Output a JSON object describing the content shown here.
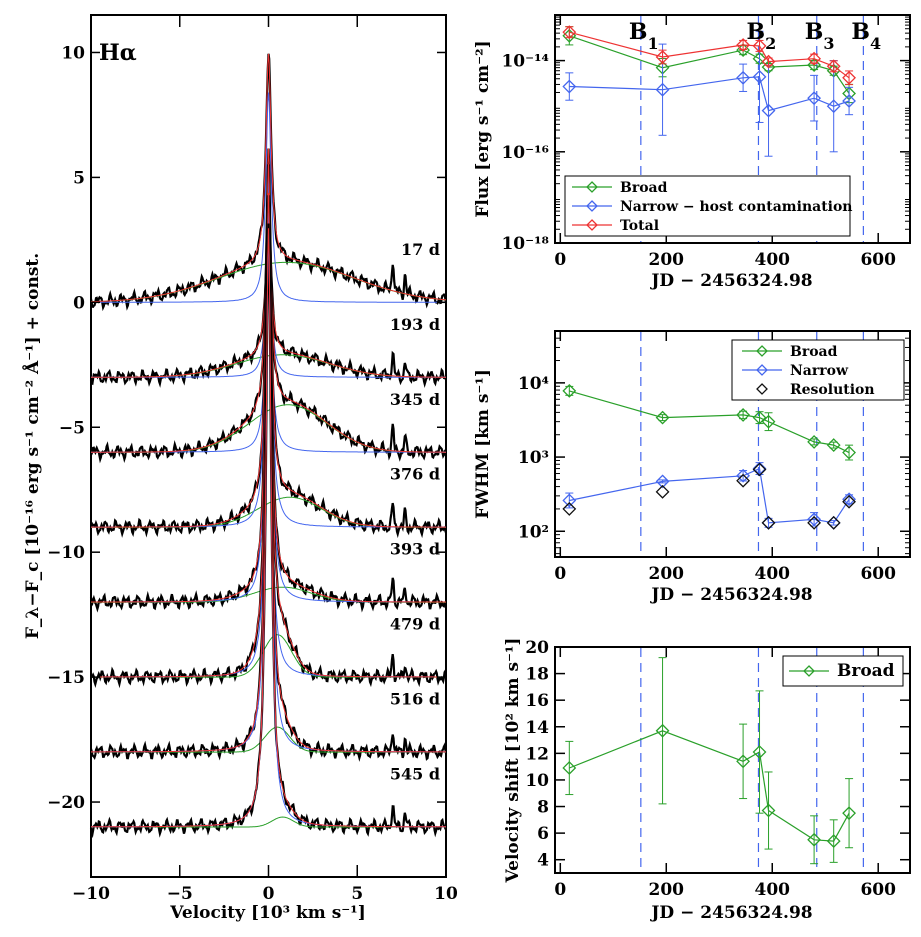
{
  "chart_data": [
    {
      "type": "line",
      "title": "Hα",
      "xlabel": "Velocity [10³ km s⁻¹]",
      "ylabel": "F_λ−F_c [10⁻¹⁶ erg s⁻¹ cm⁻² Å⁻¹] + const.",
      "xlim": [
        -10,
        10
      ],
      "ylim": [
        -23,
        11.5
      ],
      "xticks": [
        -10,
        -5,
        0,
        5,
        10
      ],
      "yticks": [
        10,
        5,
        0,
        -5,
        -10,
        -15,
        -20
      ],
      "xtick_labels": [
        "−10",
        "−5",
        "0",
        "5",
        "10"
      ],
      "ytick_labels": [
        "10",
        "5",
        "0",
        "−5",
        "−10",
        "−15",
        "−20"
      ],
      "epochs": [
        {
          "label": "17 d",
          "offset": 0,
          "peak": 9.7,
          "narrow_peak": 8.4,
          "broad_amp": 1.6,
          "broad_center": 1.0,
          "broad_width": 3.8
        },
        {
          "label": "193 d",
          "offset": -3,
          "peak": 3.4,
          "narrow_peak": 2.8,
          "broad_amp": 0.9,
          "broad_center": 0.8,
          "broad_width": 2.6
        },
        {
          "label": "345 d",
          "offset": -6,
          "peak": 4.1,
          "narrow_peak": 3.3,
          "broad_amp": 1.9,
          "broad_center": 1.1,
          "broad_width": 2.2
        },
        {
          "label": "376 d",
          "offset": -9,
          "peak": 6.0,
          "narrow_peak": 5.2,
          "broad_amp": 1.2,
          "broad_center": 1.2,
          "broad_width": 1.8
        },
        {
          "label": "393 d",
          "offset": -12,
          "peak": 5.6,
          "narrow_peak": 5.0,
          "broad_amp": 0.6,
          "broad_center": 0.8,
          "broad_width": 1.6
        },
        {
          "label": "479 d",
          "offset": -15,
          "peak": 3.6,
          "narrow_peak": 2.8,
          "broad_amp": 1.7,
          "broad_center": 0.5,
          "broad_width": 0.8
        },
        {
          "label": "516 d",
          "offset": -18,
          "peak": 4.2,
          "narrow_peak": 3.6,
          "broad_amp": 1.0,
          "broad_center": 0.5,
          "broad_width": 0.7
        },
        {
          "label": "545 d",
          "offset": -21,
          "peak": 3.3,
          "narrow_peak": 2.8,
          "broad_amp": 0.4,
          "broad_center": 0.8,
          "broad_width": 0.6
        }
      ]
    },
    {
      "type": "line",
      "xlabel": "JD − 2456324.98",
      "ylabel": "Flux [erg s⁻¹ cm⁻²]",
      "xlim": [
        -10,
        660
      ],
      "ylog": true,
      "ylim": [
        1e-18,
        1e-13
      ],
      "xticks": [
        0,
        200,
        400,
        600
      ],
      "yticks": [
        1e-18,
        1e-16,
        1e-14
      ],
      "ytick_labels": [
        "10⁻¹⁸",
        "10⁻¹⁶",
        "10⁻¹⁴"
      ],
      "vlines": [
        {
          "x": 152,
          "label": "B1"
        },
        {
          "x": 374,
          "label": "B2"
        },
        {
          "x": 484,
          "label": "B3"
        },
        {
          "x": 572,
          "label": "B4"
        }
      ],
      "x": [
        17,
        193,
        345,
        376,
        393,
        479,
        516,
        545
      ],
      "series": [
        {
          "name": "Broad",
          "color": "#2aa02a",
          "values": [
            3.5e-14,
            7e-15,
            1.7e-14,
            1.1e-14,
            7.2e-15,
            8e-15,
            6e-15,
            1.9e-15
          ],
          "errors": [
            0.2,
            0.2,
            0.1,
            0.1,
            0.08,
            0.1,
            0.1,
            0.2
          ]
        },
        {
          "name": "Narrow − host contamination",
          "color": "#4466ee",
          "values": [
            2.7e-15,
            2.3e-15,
            4.2e-15,
            4.4e-15,
            8e-16,
            1.5e-15,
            1e-15,
            1.3e-15
          ],
          "errors": [
            0.3,
            1.0,
            0.3,
            1.0,
            1.0,
            0.5,
            1.0,
            0.3
          ]
        },
        {
          "name": "Total",
          "color": "#ee3333",
          "values": [
            4.2e-14,
            1.2e-14,
            2.2e-14,
            2.1e-14,
            9.5e-15,
            1.1e-14,
            7.5e-15,
            4.2e-15
          ],
          "errors": [
            0.12,
            0.15,
            0.1,
            0.12,
            0.08,
            0.1,
            0.12,
            0.15
          ]
        }
      ],
      "legend": {
        "position": "bottom-left",
        "entries": [
          "Broad",
          "Narrow − host contamination",
          "Total"
        ]
      },
      "vline_labels": [
        {
          "main": "B",
          "sub": "1"
        },
        {
          "main": "B",
          "sub": "2"
        },
        {
          "main": "B",
          "sub": "3"
        },
        {
          "main": "B",
          "sub": "4"
        }
      ]
    },
    {
      "type": "line",
      "xlabel": "JD − 2456324.98",
      "ylabel": "FWHM [km s⁻¹]",
      "xlim": [
        -10,
        660
      ],
      "ylog": true,
      "ylim": [
        45,
        50000
      ],
      "xticks": [
        0,
        200,
        400,
        600
      ],
      "yticks": [
        100,
        1000,
        10000
      ],
      "ytick_labels": [
        "10²",
        "10³",
        "10⁴"
      ],
      "vlines": [
        152,
        374,
        484,
        572
      ],
      "x": [
        17,
        193,
        345,
        376,
        393,
        479,
        516,
        545
      ],
      "series": [
        {
          "name": "Broad",
          "color": "#2aa02a",
          "values": [
            7800,
            3400,
            3700,
            3400,
            3000,
            1600,
            1450,
            1150
          ],
          "errors": [
            0.06,
            0.04,
            0.05,
            0.08,
            0.12,
            0.04,
            0.04,
            0.1
          ]
        },
        {
          "name": "Narrow",
          "color": "#4466ee",
          "values": [
            260,
            470,
            560,
            700,
            130,
            145,
            130,
            270
          ],
          "errors": [
            0.1,
            0.02,
            0.07,
            0.08,
            0.06,
            0.09,
            0.03,
            0.06
          ]
        },
        {
          "name": "Resolution",
          "color": "#111111",
          "values": [
            200,
            340,
            480,
            680,
            130,
            130,
            130,
            250
          ],
          "marker_only": true
        }
      ],
      "legend": {
        "position": "top-right",
        "entries": [
          "Broad",
          "Narrow",
          "Resolution"
        ]
      }
    },
    {
      "type": "line",
      "xlabel": "JD − 2456324.98",
      "ylabel": "Velocity shift [10² km s⁻¹]",
      "xlim": [
        -10,
        660
      ],
      "ylim": [
        3,
        20
      ],
      "xticks": [
        0,
        200,
        400,
        600
      ],
      "yticks": [
        4,
        6,
        8,
        10,
        12,
        14,
        16,
        18,
        20
      ],
      "vlines": [
        152,
        374,
        484,
        572
      ],
      "x": [
        17,
        193,
        345,
        376,
        393,
        479,
        516,
        545
      ],
      "series": [
        {
          "name": "Broad",
          "color": "#2aa02a",
          "values": [
            10.9,
            13.7,
            11.4,
            12.1,
            7.7,
            5.5,
            5.4,
            7.5
          ],
          "errors": [
            2.0,
            5.5,
            2.8,
            4.6,
            2.9,
            1.8,
            1.6,
            2.6
          ]
        }
      ],
      "legend": {
        "position": "top-right",
        "entries": [
          "Broad"
        ]
      }
    }
  ]
}
